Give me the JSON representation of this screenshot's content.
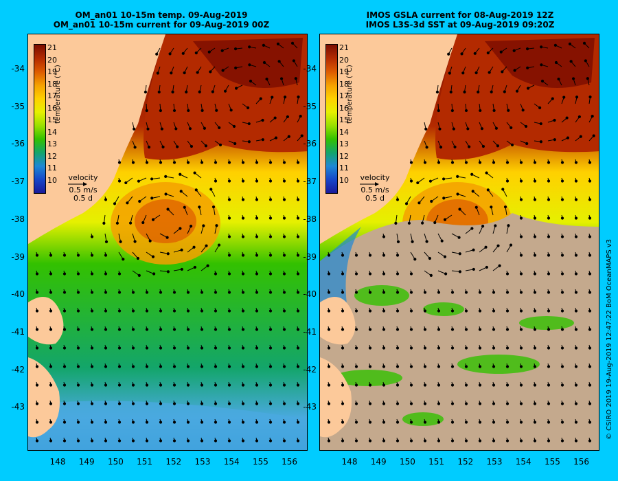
{
  "left_title": [
    "OM_an01 10-15m temp. 09-Aug-2019",
    "OM_an01 10-15m current for 09-Aug-2019 00Z"
  ],
  "right_title": [
    "IMOS GSLA current for 08-Aug-2019 12Z",
    "IMOS L3S-3d SST at 09-Aug-2019 09:20Z"
  ],
  "lat_ticks": [
    "-34",
    "-35",
    "-36",
    "-37",
    "-38",
    "-39",
    "-40",
    "-41",
    "-42",
    "-43"
  ],
  "lon_ticks": [
    "148",
    "149",
    "150",
    "151",
    "152",
    "153",
    "154",
    "155",
    "156"
  ],
  "colorbar": {
    "labels": [
      "21",
      "20",
      "19",
      "18",
      "17",
      "16",
      "15",
      "14",
      "13",
      "12",
      "11",
      "10"
    ],
    "title": "temperature (°C)",
    "colors": [
      "#7a0d00",
      "#b32a00",
      "#dd5a00",
      "#f5a000",
      "#ffd000",
      "#e6f000",
      "#9ae000",
      "#33c100",
      "#13a56a",
      "#1e88d4",
      "#1746c8",
      "#1a1a9a"
    ]
  },
  "velocity_legend": {
    "title": "velocity",
    "speed": "0.5 m/s",
    "time": "0.5 d"
  },
  "colors": {
    "background": "#00ccff",
    "land": "#fcc99a",
    "no_data": "#c4a98d"
  },
  "credit": "© CSIRO 2019 19-Aug-2019 12:47:22 BoM OceanMAPS v3"
}
